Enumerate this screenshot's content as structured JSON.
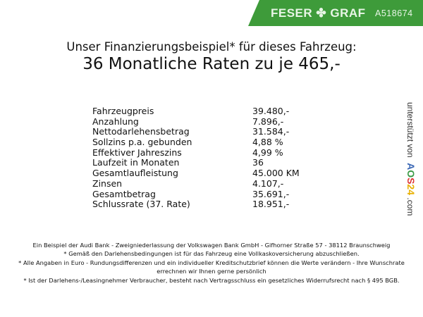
{
  "header": {
    "brand": "FESER ✤ GRAF",
    "code": "A518674",
    "brand_color": "#3e9b3a"
  },
  "title": {
    "line1": "Unser Finanzierungsbeispiel* für dieses Fahrzeug:",
    "line2": "36 Monatliche Raten zu je 465,-"
  },
  "rows": [
    {
      "label": "Fahrzeugpreis",
      "value": "39.480,-"
    },
    {
      "label": "Anzahlung",
      "value": "7.896,-"
    },
    {
      "label": "Nettodarlehensbetrag",
      "value": "31.584,-"
    },
    {
      "label": "Sollzins p.a. gebunden",
      "value": "4,88 %"
    },
    {
      "label": "Effektiver Jahreszins",
      "value": "4,99 %"
    },
    {
      "label": "Laufzeit in Monaten",
      "value": "36"
    },
    {
      "label": "Gesamtlaufleistung",
      "value": "45.000 KM"
    },
    {
      "label": "Zinsen",
      "value": "4.107,-"
    },
    {
      "label": "Gesamtbetrag",
      "value": "35.691,-"
    },
    {
      "label": "Schlussrate (37. Rate)",
      "value": "18.951,-"
    }
  ],
  "side": {
    "text": "unterstützt von",
    "logo": [
      "A",
      "O",
      "S",
      "2",
      "4"
    ],
    "suffix": ".com"
  },
  "footer": [
    "Ein Beispiel der Audi Bank - Zweigniederlassung der Volkswagen Bank GmbH - Gifhorner Straße 57 - 38112 Braunschweig",
    "* Gemäß den Darlehensbedingungen ist für das Fahrzeug eine Vollkaskoversicherung abzuschließen.",
    "* Alle Angaben in Euro - Rundungsdifferenzen und ein individueller Kreditschutzbrief können die Werte verändern - Ihre Wunschrate errechnen wir Ihnen gerne persönlich",
    "* Ist der Darlehens-/Leasingnehmer Verbraucher, besteht nach Vertragsschluss ein gesetzliches Widerrufsrecht nach § 495 BGB."
  ]
}
